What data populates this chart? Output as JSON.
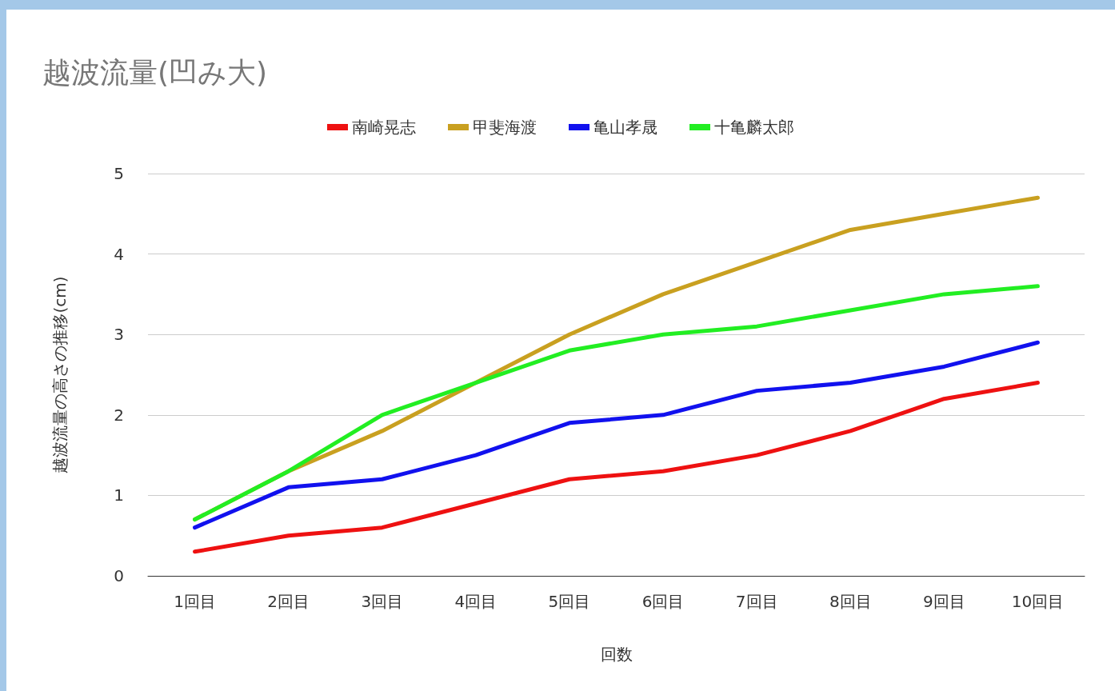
{
  "chart_data": {
    "type": "line",
    "title": "越波流量(凹み大)",
    "xlabel": "回数",
    "ylabel": "越波流量の高さの推移(cm)",
    "categories": [
      "1回目",
      "2回目",
      "3回目",
      "4回目",
      "5回目",
      "6回目",
      "7回目",
      "8回目",
      "9回目",
      "10回目"
    ],
    "series": [
      {
        "name": "南崎晃志",
        "color": "#ee1111",
        "values": [
          0.3,
          0.5,
          0.6,
          0.9,
          1.2,
          1.3,
          1.5,
          1.8,
          2.2,
          2.4
        ]
      },
      {
        "name": "甲斐海渡",
        "color": "#c9a020",
        "values": [
          0.7,
          1.3,
          1.8,
          2.4,
          3.0,
          3.5,
          3.9,
          4.3,
          4.5,
          4.7
        ]
      },
      {
        "name": "亀山孝晟",
        "color": "#1111ee",
        "values": [
          0.6,
          1.1,
          1.2,
          1.5,
          1.9,
          2.0,
          2.3,
          2.4,
          2.6,
          2.9
        ]
      },
      {
        "name": "十亀麟太郎",
        "color": "#22ee22",
        "values": [
          0.7,
          1.3,
          2.0,
          2.4,
          2.8,
          3.0,
          3.1,
          3.3,
          3.5,
          3.6
        ]
      }
    ],
    "ylim": [
      0,
      5
    ],
    "yticks": [
      0,
      1,
      2,
      3,
      4,
      5
    ],
    "grid": "y",
    "legend": "top",
    "marker": "none",
    "line_style": "solid"
  }
}
